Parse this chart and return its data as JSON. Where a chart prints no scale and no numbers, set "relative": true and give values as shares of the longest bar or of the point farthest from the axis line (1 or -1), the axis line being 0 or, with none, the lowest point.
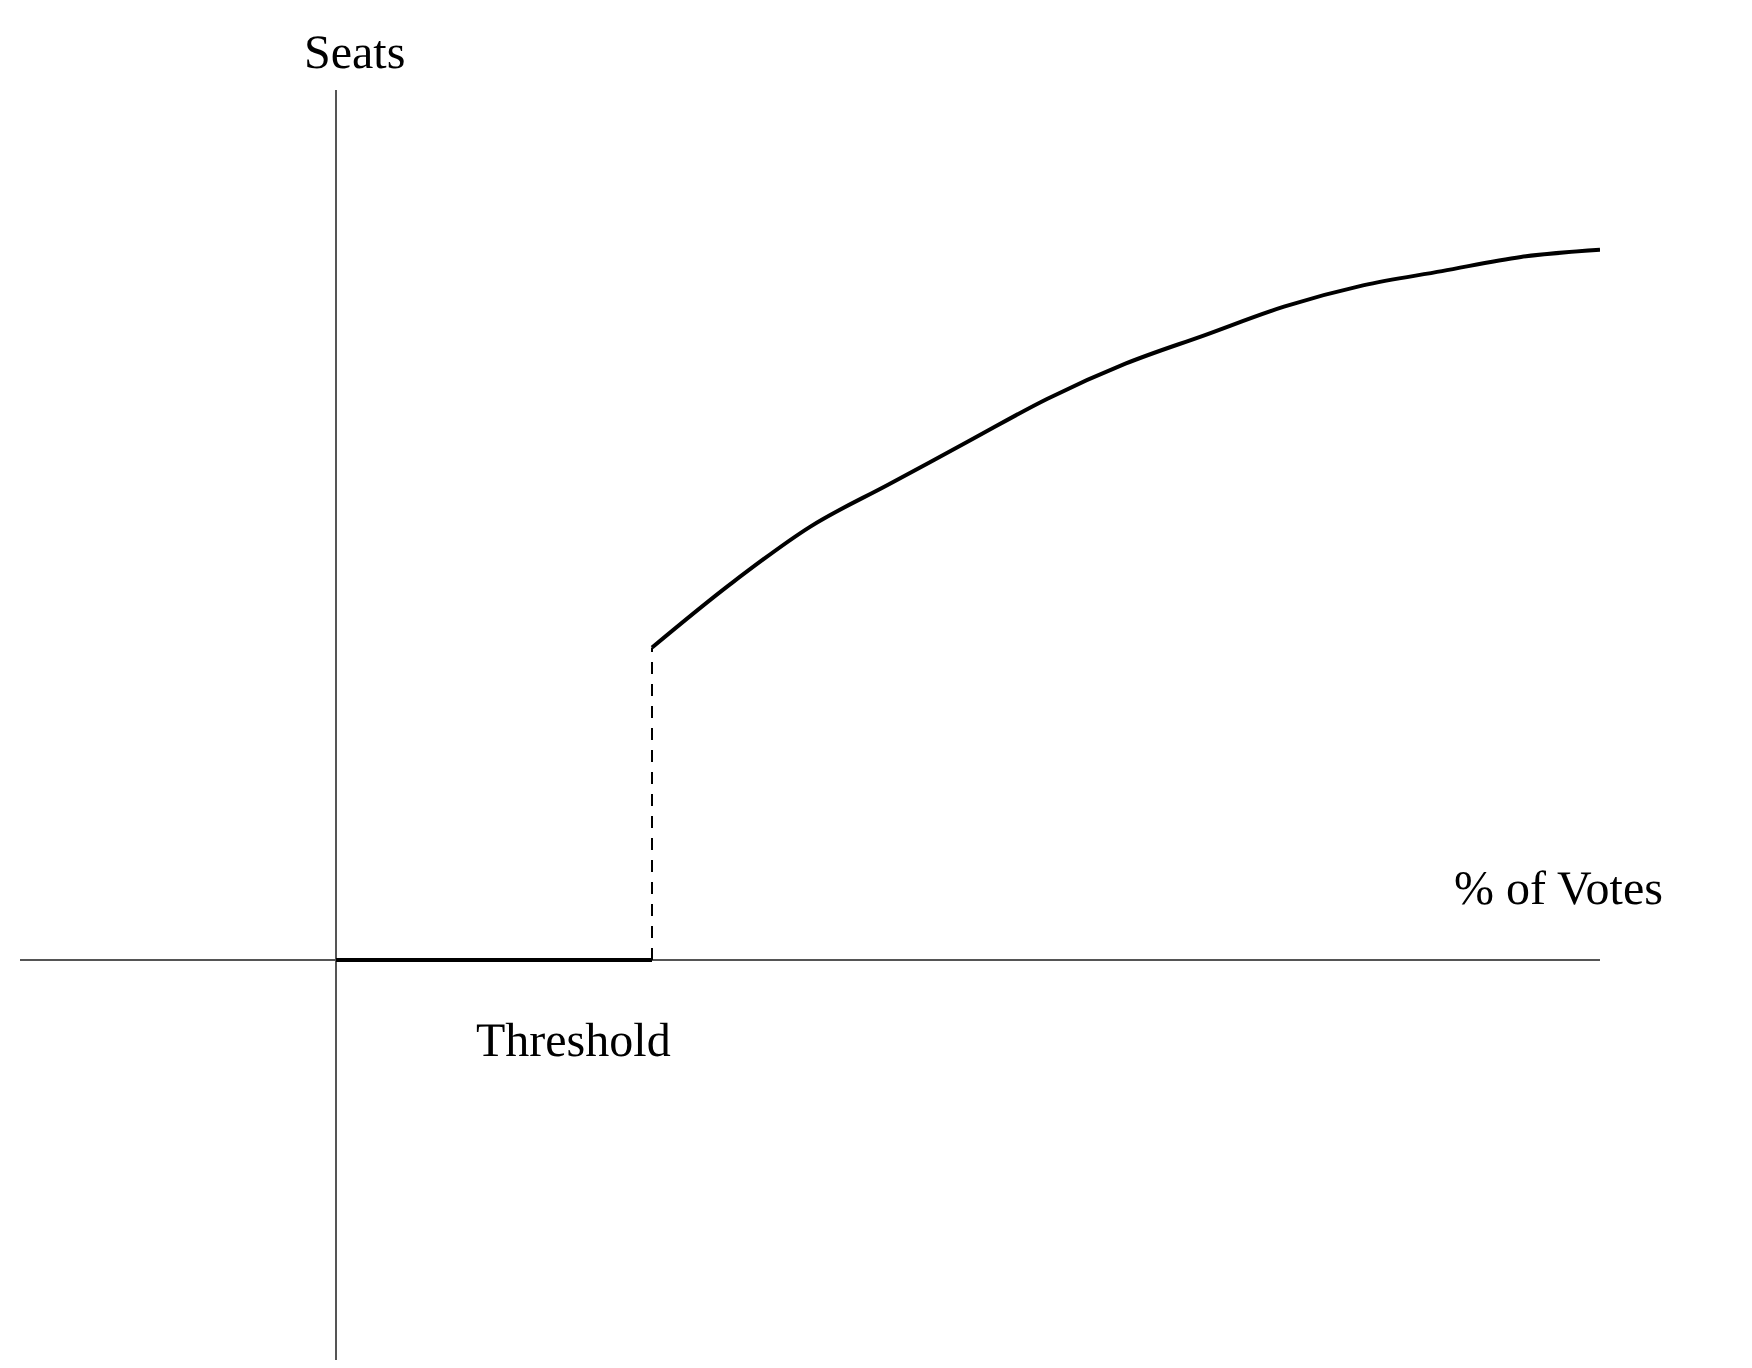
{
  "chart_data": {
    "type": "line",
    "relative": true,
    "xlabel": "% of Votes",
    "ylabel": "Seats",
    "categories": [
      null,
      null,
      null,
      null,
      null,
      null,
      null,
      null,
      null,
      null,
      null,
      null,
      null,
      null,
      null,
      null,
      null
    ],
    "series": [
      {
        "color": "#000000",
        "values": [
          0,
          0,
          0,
          0,
          0,
          null,
          null,
          null,
          null,
          null,
          null,
          null,
          null,
          null,
          null,
          null,
          null
        ]
      },
      {
        "color": "#000000",
        "values": [
          null,
          null,
          null,
          null,
          0.44,
          0.53,
          0.61,
          0.67,
          0.73,
          0.79,
          0.84,
          0.88,
          0.92,
          0.95,
          0.97,
          0.99,
          1.0
        ]
      }
    ],
    "annotations": [
      "Threshold"
    ],
    "legend": false,
    "grid": false,
    "marker": "none",
    "line_style": "solid"
  }
}
